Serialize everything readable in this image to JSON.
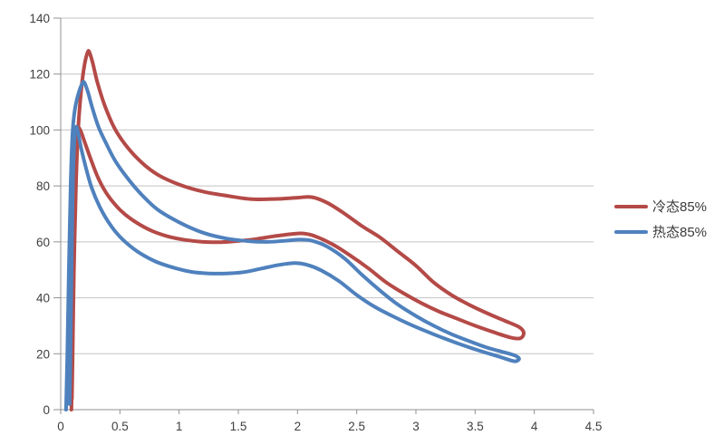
{
  "chart": {
    "background": "#ffffff",
    "gridline_color": "#c3c3c3",
    "axis_color": "#919191",
    "tick_label_color": "#3f3f3f",
    "legend": {
      "position": "right",
      "items": [
        {
          "label": "冷态85%",
          "color": "#b44a47"
        },
        {
          "label": "热态85%",
          "color": "#4f81bd"
        }
      ]
    }
  },
  "chart_data": {
    "type": "line",
    "title": "",
    "xlabel": "",
    "ylabel": "",
    "xlim": [
      0,
      4.5
    ],
    "ylim": [
      0,
      140
    ],
    "x_ticks": [
      0,
      0.5,
      1,
      1.5,
      2,
      2.5,
      3,
      3.5,
      4,
      4.5
    ],
    "y_ticks": [
      0,
      20,
      40,
      60,
      80,
      100,
      120,
      140
    ],
    "grid": "horizontal",
    "legend_position": "right",
    "series": [
      {
        "name": "冷态85%",
        "color": "#b44a47",
        "shape": "closed-loop",
        "points": [
          [
            0.09,
            0
          ],
          [
            0.1,
            18
          ],
          [
            0.112,
            50
          ],
          [
            0.13,
            82
          ],
          [
            0.15,
            102
          ],
          [
            0.175,
            115
          ],
          [
            0.2,
            123
          ],
          [
            0.225,
            127.5
          ],
          [
            0.24,
            128
          ],
          [
            0.27,
            124
          ],
          [
            0.31,
            117
          ],
          [
            0.37,
            109
          ],
          [
            0.45,
            101
          ],
          [
            0.55,
            94.5
          ],
          [
            0.68,
            88.5
          ],
          [
            0.82,
            84
          ],
          [
            1.0,
            80.5
          ],
          [
            1.2,
            78
          ],
          [
            1.4,
            76.5
          ],
          [
            1.6,
            75.3
          ],
          [
            1.8,
            75.3
          ],
          [
            2.0,
            75.8
          ],
          [
            2.12,
            76
          ],
          [
            2.25,
            74
          ],
          [
            2.4,
            70
          ],
          [
            2.55,
            65.5
          ],
          [
            2.7,
            61.5
          ],
          [
            2.85,
            56.5
          ],
          [
            3.0,
            51.5
          ],
          [
            3.15,
            45.5
          ],
          [
            3.3,
            41
          ],
          [
            3.45,
            37.5
          ],
          [
            3.6,
            34.5
          ],
          [
            3.75,
            31.8
          ],
          [
            3.86,
            29.8
          ],
          [
            3.9,
            28.5
          ],
          [
            3.91,
            27
          ],
          [
            3.88,
            25.5
          ],
          [
            3.8,
            25.8
          ],
          [
            3.65,
            27.8
          ],
          [
            3.5,
            30
          ],
          [
            3.35,
            32.5
          ],
          [
            3.2,
            35
          ],
          [
            3.05,
            38
          ],
          [
            2.9,
            41.5
          ],
          [
            2.75,
            45.5
          ],
          [
            2.6,
            50.5
          ],
          [
            2.45,
            55
          ],
          [
            2.3,
            59
          ],
          [
            2.15,
            62
          ],
          [
            2.05,
            63
          ],
          [
            1.95,
            62.8
          ],
          [
            1.8,
            62
          ],
          [
            1.65,
            61
          ],
          [
            1.5,
            60.3
          ],
          [
            1.35,
            59.9
          ],
          [
            1.2,
            60
          ],
          [
            1.05,
            60.7
          ],
          [
            0.9,
            62
          ],
          [
            0.75,
            64.3
          ],
          [
            0.6,
            68
          ],
          [
            0.5,
            71.5
          ],
          [
            0.4,
            76.5
          ],
          [
            0.32,
            82.5
          ],
          [
            0.25,
            90
          ],
          [
            0.2,
            96
          ],
          [
            0.17,
            99.5
          ],
          [
            0.15,
            100.5
          ],
          [
            0.135,
            96
          ],
          [
            0.122,
            78
          ],
          [
            0.11,
            48
          ],
          [
            0.1,
            18
          ],
          [
            0.095,
            4
          ]
        ]
      },
      {
        "name": "热态85%",
        "color": "#4f81bd",
        "shape": "closed-loop",
        "points": [
          [
            0.045,
            0
          ],
          [
            0.055,
            18
          ],
          [
            0.07,
            52
          ],
          [
            0.085,
            82
          ],
          [
            0.1,
            99
          ],
          [
            0.12,
            107.5
          ],
          [
            0.15,
            113
          ],
          [
            0.18,
            116.5
          ],
          [
            0.2,
            117
          ],
          [
            0.23,
            113.5
          ],
          [
            0.27,
            107.5
          ],
          [
            0.32,
            101
          ],
          [
            0.38,
            95.5
          ],
          [
            0.46,
            89
          ],
          [
            0.56,
            83
          ],
          [
            0.68,
            77
          ],
          [
            0.82,
            71.5
          ],
          [
            1.0,
            67
          ],
          [
            1.2,
            63.3
          ],
          [
            1.4,
            61.2
          ],
          [
            1.6,
            60.2
          ],
          [
            1.75,
            60
          ],
          [
            1.9,
            60.4
          ],
          [
            2.02,
            60.8
          ],
          [
            2.12,
            60.4
          ],
          [
            2.25,
            58.3
          ],
          [
            2.4,
            54
          ],
          [
            2.55,
            48
          ],
          [
            2.7,
            42.5
          ],
          [
            2.85,
            37.5
          ],
          [
            3.0,
            33.5
          ],
          [
            3.15,
            30
          ],
          [
            3.3,
            27
          ],
          [
            3.45,
            24.5
          ],
          [
            3.6,
            22.2
          ],
          [
            3.72,
            20.8
          ],
          [
            3.82,
            19.6
          ],
          [
            3.86,
            18.8
          ],
          [
            3.87,
            18
          ],
          [
            3.83,
            17.3
          ],
          [
            3.7,
            19
          ],
          [
            3.55,
            20.9
          ],
          [
            3.4,
            23
          ],
          [
            3.25,
            25.3
          ],
          [
            3.1,
            27.8
          ],
          [
            2.95,
            30.5
          ],
          [
            2.8,
            33.5
          ],
          [
            2.65,
            36.8
          ],
          [
            2.5,
            41
          ],
          [
            2.35,
            46
          ],
          [
            2.2,
            49.8
          ],
          [
            2.08,
            51.8
          ],
          [
            1.98,
            52.4
          ],
          [
            1.85,
            51.8
          ],
          [
            1.7,
            50.5
          ],
          [
            1.55,
            49.2
          ],
          [
            1.4,
            48.7
          ],
          [
            1.25,
            48.7
          ],
          [
            1.1,
            49.3
          ],
          [
            0.95,
            50.8
          ],
          [
            0.8,
            53
          ],
          [
            0.65,
            56.5
          ],
          [
            0.52,
            61
          ],
          [
            0.42,
            66
          ],
          [
            0.33,
            72.5
          ],
          [
            0.26,
            79.5
          ],
          [
            0.21,
            87
          ],
          [
            0.17,
            94
          ],
          [
            0.145,
            99.5
          ],
          [
            0.13,
            101
          ],
          [
            0.115,
            96
          ],
          [
            0.1,
            75
          ],
          [
            0.09,
            45
          ],
          [
            0.08,
            15
          ],
          [
            0.075,
            2
          ]
        ]
      }
    ]
  }
}
